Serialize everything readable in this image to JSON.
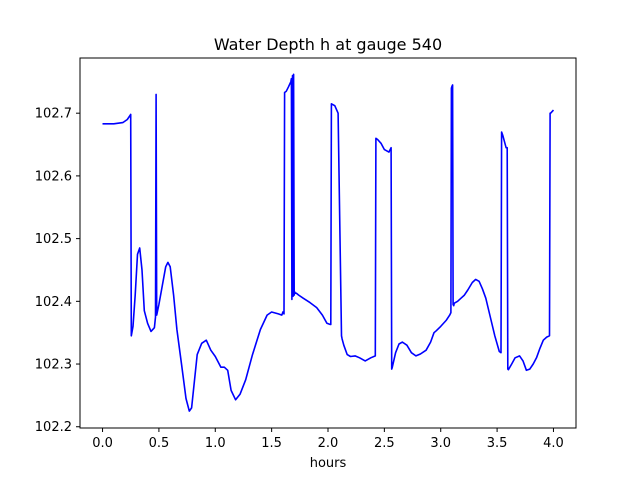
{
  "chart_data": {
    "type": "line",
    "title": "Water Depth h at gauge 540",
    "xlabel": "hours",
    "ylabel": "",
    "xlim": [
      -0.2,
      4.2
    ],
    "ylim": [
      102.198,
      102.788
    ],
    "xticks": [
      0.0,
      0.5,
      1.0,
      1.5,
      2.0,
      2.5,
      3.0,
      3.5,
      4.0
    ],
    "xtick_labels": [
      "0.0",
      "0.5",
      "1.0",
      "1.5",
      "2.0",
      "2.5",
      "3.0",
      "3.5",
      "4.0"
    ],
    "yticks": [
      102.2,
      102.3,
      102.4,
      102.5,
      102.6,
      102.7
    ],
    "ytick_labels": [
      "102.2",
      "102.3",
      "102.4",
      "102.5",
      "102.6",
      "102.7"
    ],
    "grid": false,
    "series": [
      {
        "color": "#0000ff",
        "x": [
          0.0,
          0.1,
          0.18,
          0.22,
          0.25,
          0.255,
          0.27,
          0.29,
          0.31,
          0.33,
          0.35,
          0.37,
          0.4,
          0.43,
          0.46,
          0.47,
          0.475,
          0.48,
          0.5,
          0.53,
          0.56,
          0.58,
          0.6,
          0.63,
          0.66,
          0.7,
          0.74,
          0.77,
          0.79,
          0.81,
          0.84,
          0.88,
          0.92,
          0.96,
          1.0,
          1.05,
          1.08,
          1.11,
          1.14,
          1.18,
          1.22,
          1.27,
          1.33,
          1.4,
          1.46,
          1.5,
          1.56,
          1.59,
          1.6,
          1.61,
          1.615,
          1.63,
          1.65,
          1.67,
          1.675,
          1.68,
          1.685,
          1.69,
          1.695,
          1.7,
          1.705,
          1.71,
          1.72,
          1.74,
          1.78,
          1.84,
          1.9,
          1.95,
          1.99,
          2.02,
          2.025,
          2.03,
          2.06,
          2.09,
          2.12,
          2.125,
          2.14,
          2.17,
          2.2,
          2.24,
          2.28,
          2.33,
          2.38,
          2.42,
          2.425,
          2.44,
          2.47,
          2.5,
          2.54,
          2.56,
          2.565,
          2.57,
          2.6,
          2.63,
          2.66,
          2.7,
          2.74,
          2.78,
          2.82,
          2.87,
          2.91,
          2.94,
          2.96,
          3.0,
          3.05,
          3.08,
          3.09,
          3.095,
          3.1,
          3.105,
          3.11,
          3.115,
          3.12,
          3.15,
          3.18,
          3.21,
          3.24,
          3.28,
          3.31,
          3.34,
          3.37,
          3.4,
          3.44,
          3.48,
          3.52,
          3.535,
          3.54,
          3.55,
          3.58,
          3.59,
          3.595,
          3.6,
          3.63,
          3.66,
          3.7,
          3.73,
          3.76,
          3.79,
          3.82,
          3.85,
          3.88,
          3.91,
          3.94,
          3.965,
          3.97,
          3.975,
          4.0
        ],
        "values": [
          102.683,
          102.683,
          102.685,
          102.69,
          102.698,
          102.345,
          102.36,
          102.41,
          102.475,
          102.485,
          102.45,
          102.385,
          102.365,
          102.352,
          102.358,
          102.375,
          102.73,
          102.378,
          102.395,
          102.425,
          102.455,
          102.462,
          102.455,
          102.41,
          102.355,
          102.3,
          102.245,
          102.225,
          102.23,
          102.265,
          102.315,
          102.333,
          102.338,
          102.322,
          102.312,
          102.295,
          102.295,
          102.29,
          102.258,
          102.243,
          102.252,
          102.275,
          102.315,
          102.355,
          102.378,
          102.383,
          102.38,
          102.378,
          102.383,
          102.38,
          102.733,
          102.735,
          102.742,
          102.75,
          102.755,
          102.403,
          102.76,
          102.408,
          102.762,
          102.41,
          102.415,
          102.413,
          102.413,
          102.41,
          102.405,
          102.398,
          102.39,
          102.378,
          102.365,
          102.363,
          102.363,
          102.715,
          102.712,
          102.7,
          102.345,
          102.34,
          102.33,
          102.315,
          102.312,
          102.313,
          102.31,
          102.305,
          102.31,
          102.313,
          102.66,
          102.658,
          102.652,
          102.642,
          102.638,
          102.645,
          102.292,
          102.295,
          102.318,
          102.332,
          102.335,
          102.33,
          102.318,
          102.313,
          102.316,
          102.322,
          102.335,
          102.35,
          102.353,
          102.36,
          102.37,
          102.378,
          102.382,
          102.74,
          102.743,
          102.745,
          102.395,
          102.393,
          102.397,
          102.4,
          102.405,
          102.41,
          102.418,
          102.43,
          102.435,
          102.432,
          102.42,
          102.405,
          102.375,
          102.345,
          102.32,
          102.318,
          102.67,
          102.665,
          102.645,
          102.645,
          102.292,
          102.291,
          102.3,
          102.31,
          102.313,
          102.305,
          102.29,
          102.292,
          102.3,
          102.31,
          102.325,
          102.338,
          102.343,
          102.345,
          102.7,
          102.7,
          102.705
        ]
      }
    ]
  }
}
